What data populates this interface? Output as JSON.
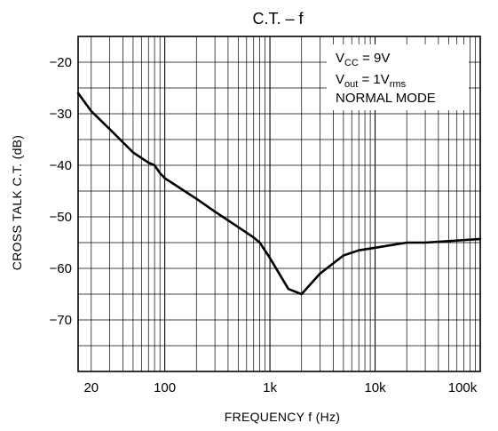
{
  "chart_data": {
    "type": "line",
    "title": "C.T.  –  f",
    "xlabel": "FREQUENCY   f   (Hz)",
    "ylabel": "CROSS TALK  C.T.  (dB)",
    "xscale": "log",
    "xlim": [
      15,
      100000
    ],
    "ylim": [
      -80,
      -15
    ],
    "grid": true,
    "x_tick_labels": [
      {
        "value": 20,
        "label": "20"
      },
      {
        "value": 100,
        "label": "100"
      },
      {
        "value": 1000,
        "label": "1k"
      },
      {
        "value": 10000,
        "label": "10k"
      },
      {
        "value": 100000,
        "label": "100k"
      }
    ],
    "y_tick_labels": [
      {
        "value": -20,
        "label": "−20"
      },
      {
        "value": -30,
        "label": "−30"
      },
      {
        "value": -40,
        "label": "−40"
      },
      {
        "value": -50,
        "label": "−50"
      },
      {
        "value": -60,
        "label": "−60"
      },
      {
        "value": -70,
        "label": "−70"
      }
    ],
    "conditions": {
      "vcc": {
        "main": "V",
        "sub": "CC",
        "rest": " = 9V"
      },
      "vout": {
        "main": "V",
        "sub": "out",
        "mid": " = 1V",
        "sub2": "rms"
      },
      "mode": "NORMAL MODE"
    },
    "series": [
      {
        "x": [
          15,
          20,
          30,
          50,
          70,
          80,
          90,
          100,
          200,
          300,
          500,
          700,
          800,
          1000,
          1500,
          2000,
          3000,
          5000,
          7000,
          10000,
          20000,
          30000,
          50000,
          100000
        ],
        "y": [
          -26,
          -29.5,
          -33,
          -37.5,
          -39.5,
          -40,
          -41.5,
          -42.5,
          -46.5,
          -49,
          -52,
          -54,
          -55,
          -58,
          -64,
          -65,
          -61,
          -57.5,
          -56.5,
          -56,
          -55,
          -55,
          -54.7,
          -54.3
        ]
      }
    ]
  }
}
